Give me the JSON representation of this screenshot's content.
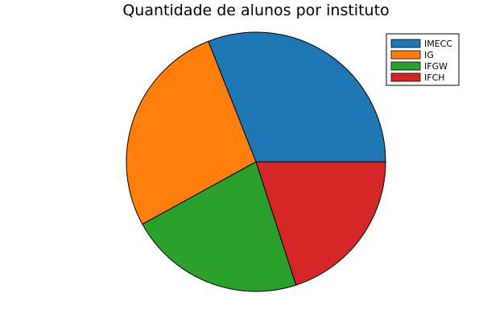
{
  "chart_data": {
    "type": "pie",
    "title": "Quantidade de alunos por instituto",
    "categories": [
      "IMECC",
      "IG",
      "IFGW",
      "IFCH"
    ],
    "values": [
      31,
      27,
      22,
      20
    ],
    "colors": [
      "#1f77b4",
      "#ff7f0e",
      "#2ca02c",
      "#d62728"
    ],
    "start_angle_deg": 0,
    "direction": "counterclockwise",
    "legend_position": "top-right"
  }
}
